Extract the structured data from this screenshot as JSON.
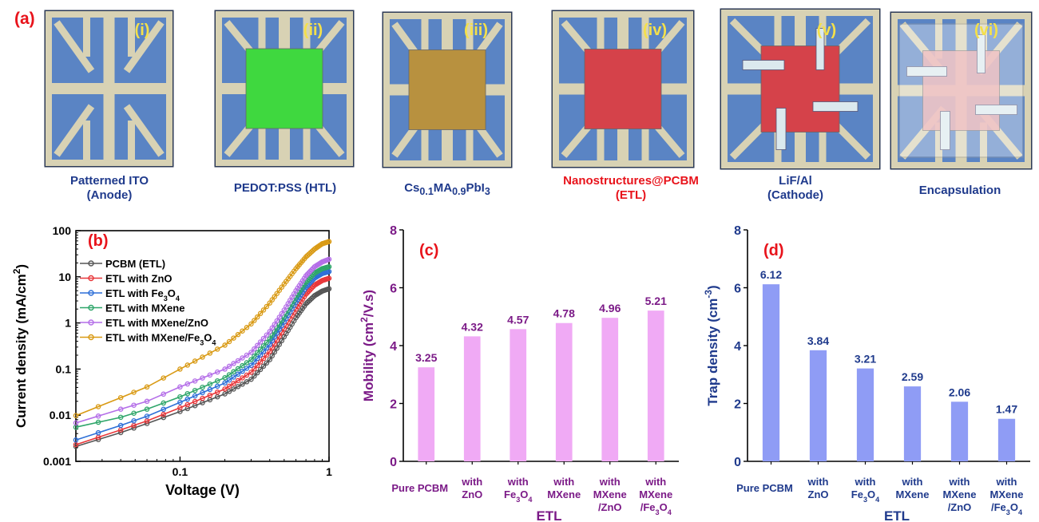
{
  "figure": {
    "panel_a_label": "(a)",
    "steps": [
      {
        "roman": "(i)",
        "caption_lines": [
          "Patterned ITO",
          "(Anode)"
        ],
        "layer_color": ""
      },
      {
        "roman": "(ii)",
        "caption_lines": [
          "PEDOT:PSS (HTL)"
        ],
        "layer_color": "#3fd83f"
      },
      {
        "roman": "(iii)",
        "caption_lines": [
          "Cs0.1MA0.9PbI3"
        ],
        "layer_color": "#b8913f"
      },
      {
        "roman": "(iv)",
        "caption_lines": [
          "Nanostructures@PCBM",
          "(ETL)"
        ],
        "layer_color": "#d5424a"
      },
      {
        "roman": "(v)",
        "caption_lines": [
          "LiF/Al",
          "(Cathode)"
        ],
        "layer_color": "#d5424a"
      },
      {
        "roman": "(vi)",
        "caption_lines": [
          "Encapsulation"
        ],
        "layer_color": "#e9a3a6"
      }
    ],
    "colors": {
      "substrate": "#5a84c4",
      "substrate_edge": "#2c3a55",
      "electrode": "#d8d2b4",
      "contact": "#dbe9ee",
      "accent_red": "#e8131b",
      "accent_yellow": "#f4e04a",
      "caption_blue": "#1f3a8c"
    }
  },
  "chart_data": [
    {
      "type": "line",
      "panel_label": "(b)",
      "xlabel": "Voltage (V)",
      "ylabel": "Current density (mA/cm2)",
      "x_scale": "log",
      "y_scale": "log",
      "xlim": [
        0.02,
        1.0
      ],
      "ylim": [
        0.001,
        100
      ],
      "x_ticks": [
        {
          "v": 0.1,
          "label": "0.1"
        },
        {
          "v": 1,
          "label": "1"
        }
      ],
      "y_ticks": [
        {
          "v": 0.001,
          "label": "0.001"
        },
        {
          "v": 0.01,
          "label": "0.01"
        },
        {
          "v": 0.1,
          "label": "0.1"
        },
        {
          "v": 1,
          "label": "1"
        },
        {
          "v": 10,
          "label": "10"
        },
        {
          "v": 100,
          "label": "100"
        }
      ],
      "legend_position": "top-left",
      "x": [
        0.02,
        0.04,
        0.06,
        0.1,
        0.2,
        0.3,
        0.4,
        0.5,
        0.6,
        0.7,
        0.8,
        0.9,
        1.0
      ],
      "series": [
        {
          "name": "PCBM (ETL)",
          "color": "#555555",
          "values": [
            0.0021,
            0.0042,
            0.0066,
            0.012,
            0.029,
            0.06,
            0.16,
            0.5,
            1.3,
            2.6,
            3.9,
            4.9,
            5.5
          ]
        },
        {
          "name": "ETL with ZnO",
          "color": "#e8373a",
          "values": [
            0.0023,
            0.0048,
            0.0075,
            0.0145,
            0.037,
            0.085,
            0.24,
            0.75,
            2.0,
            4.2,
            6.6,
            8.3,
            9.3
          ]
        },
        {
          "name": "ETL with Fe3O4",
          "color": "#2d6fd8",
          "values": [
            0.0029,
            0.006,
            0.0095,
            0.019,
            0.05,
            0.12,
            0.34,
            1.05,
            2.8,
            5.9,
            9.4,
            11.8,
            13.0
          ]
        },
        {
          "name": "ETL with MXene",
          "color": "#2fa66a",
          "values": [
            0.0055,
            0.009,
            0.0135,
            0.025,
            0.065,
            0.16,
            0.45,
            1.35,
            3.6,
            7.6,
            12.0,
            15.0,
            16.5
          ]
        },
        {
          "name": "ETL with MXene/ZnO",
          "color": "#b46ee8",
          "values": [
            0.0068,
            0.0135,
            0.02,
            0.041,
            0.1,
            0.23,
            0.65,
            1.9,
            5.0,
            10.5,
            16.5,
            21.0,
            24.0
          ]
        },
        {
          "name": "ETL with MXene/Fe3O4",
          "color": "#d99a14",
          "values": [
            0.0098,
            0.024,
            0.041,
            0.1,
            0.33,
            0.95,
            2.7,
            7.0,
            15.0,
            27.0,
            40.0,
            52.0,
            58.0
          ]
        }
      ]
    },
    {
      "type": "bar",
      "panel_label": "(c)",
      "xlabel": "ETL",
      "ylabel": "Mobility (cm2/V.s)",
      "ylim": [
        0,
        8
      ],
      "y_ticks": [
        0,
        2,
        4,
        6,
        8
      ],
      "bar_color": "#f0aaf5",
      "label_color": "#7b1a87",
      "categories": [
        "Pure PCBM",
        "with ZnO",
        "with Fe3O4",
        "with MXene",
        "with MXene /ZnO",
        "with MXene /Fe3O4"
      ],
      "values": [
        3.25,
        4.32,
        4.57,
        4.78,
        4.96,
        5.21
      ],
      "value_labels": [
        "3.25",
        "4.32",
        "4.57",
        "4.78",
        "4.96",
        "5.21"
      ]
    },
    {
      "type": "bar",
      "panel_label": "(d)",
      "xlabel": "ETL",
      "ylabel": "Trap density (cm-3)",
      "ylim": [
        0,
        8
      ],
      "y_ticks": [
        0,
        2,
        4,
        6,
        8
      ],
      "bar_color": "#8f9cf5",
      "label_color": "#1f3a8c",
      "categories": [
        "Pure PCBM",
        "with ZnO",
        "with Fe3O4",
        "with MXene",
        "with MXene /ZnO",
        "with MXene /Fe3O4"
      ],
      "values": [
        6.12,
        3.84,
        3.21,
        2.59,
        2.06,
        1.47
      ],
      "value_labels": [
        "6.12",
        "3.84",
        "3.21",
        "2.59",
        "2.06",
        "1.47"
      ]
    }
  ]
}
